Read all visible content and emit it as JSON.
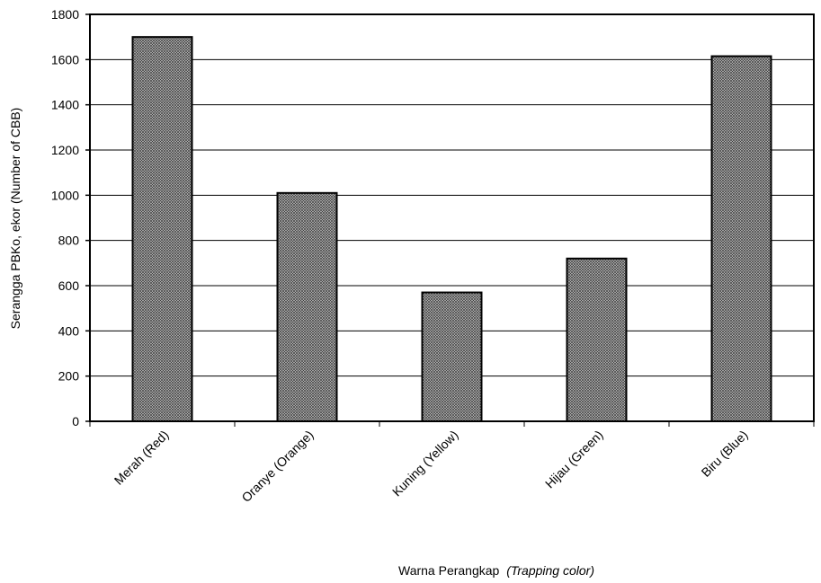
{
  "chart_data": {
    "type": "bar",
    "categories": [
      "Merah (Red)",
      "Oranye (Orange)",
      "Kuning (Yellow)",
      "Hijau (Green)",
      "Biru (Blue)"
    ],
    "values": [
      1700,
      1010,
      570,
      720,
      1615
    ],
    "title": "",
    "xlabel": "Warna Perangkap",
    "xlabel_italic": "(Trapping color)",
    "ylabel": "Serangga PBKo, ekor (Number of CBB)",
    "ylim": [
      0,
      1800
    ],
    "yticks": [
      0,
      200,
      400,
      600,
      800,
      1000,
      1200,
      1400,
      1600,
      1800
    ],
    "grid": "horizontal",
    "bar_fill": "crosshatch gray",
    "colors": {
      "bar_base": "#b8b8b8",
      "bar_hatch": "#4a4a4a",
      "axis": "#000000"
    }
  }
}
